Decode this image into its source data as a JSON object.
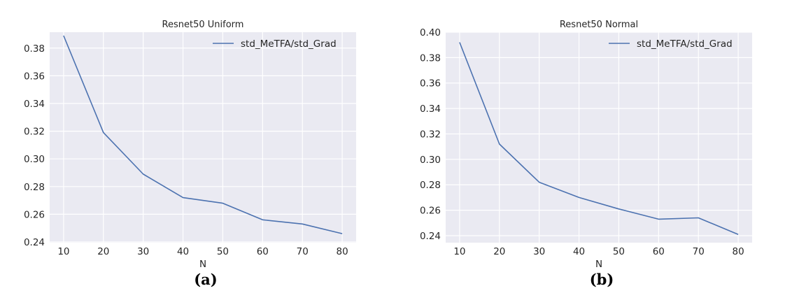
{
  "chart_data": [
    {
      "type": "line",
      "title": "Resnet50 Uniform",
      "xlabel": "N",
      "ylabel": "",
      "caption": "(a)",
      "x": [
        10,
        20,
        30,
        40,
        50,
        60,
        70,
        80
      ],
      "xticks": [
        "10",
        "20",
        "30",
        "40",
        "50",
        "60",
        "70",
        "80"
      ],
      "xlim": [
        6.5,
        83.5
      ],
      "ylim": [
        0.2395,
        0.3915
      ],
      "yticks": [
        "0.24",
        "0.26",
        "0.28",
        "0.30",
        "0.32",
        "0.34",
        "0.36",
        "0.38"
      ],
      "series": [
        {
          "name": "std_MeTFA/std_Grad",
          "color": "#4c72b0",
          "values": [
            0.389,
            0.319,
            0.289,
            0.272,
            0.268,
            0.256,
            0.253,
            0.246
          ]
        }
      ],
      "legend": "top-right",
      "grid": true,
      "background": "#eaeaf2"
    },
    {
      "type": "line",
      "title": "Resnet50 Normal",
      "xlabel": "N",
      "ylabel": "",
      "caption": "(b)",
      "x": [
        10,
        20,
        30,
        40,
        50,
        60,
        70,
        80
      ],
      "xticks": [
        "10",
        "20",
        "30",
        "40",
        "50",
        "60",
        "70",
        "80"
      ],
      "xlim": [
        6.5,
        83.5
      ],
      "ylim": [
        0.2345,
        0.4
      ],
      "yticks": [
        "0.24",
        "0.26",
        "0.28",
        "0.30",
        "0.32",
        "0.34",
        "0.36",
        "0.38",
        "0.40"
      ],
      "series": [
        {
          "name": "std_MeTFA/std_Grad",
          "color": "#4c72b0",
          "values": [
            0.392,
            0.312,
            0.282,
            0.27,
            0.261,
            0.253,
            0.254,
            0.241
          ]
        }
      ],
      "legend": "top-right",
      "grid": true,
      "background": "#eaeaf2"
    }
  ]
}
